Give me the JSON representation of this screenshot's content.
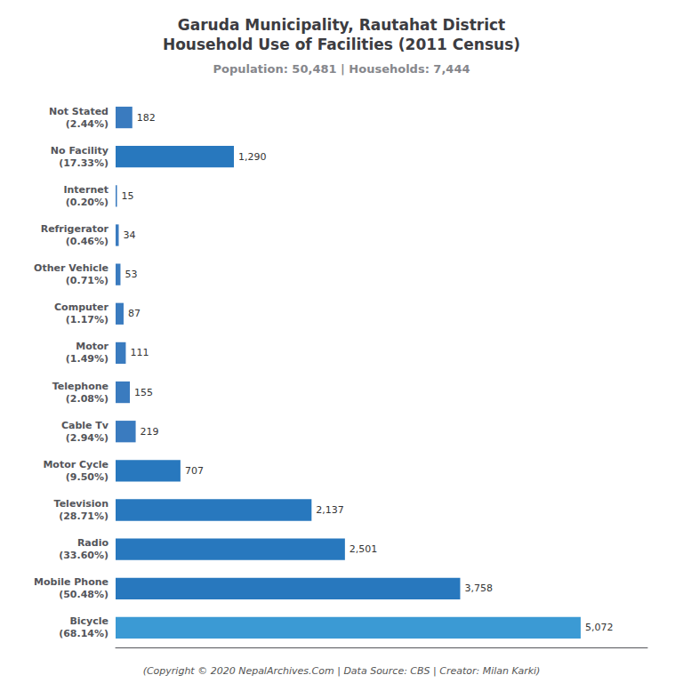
{
  "chart_data": {
    "type": "bar",
    "orientation": "horizontal",
    "title": "Garuda Municipality, Rautahat District\nHousehold Use of Facilities (2011 Census)",
    "subtitle": "Population: 50,481 | Households: 7,444",
    "annotations": [
      "(Copyright © 2020 NepalArchives.Com | Data Source: CBS | Creator: Milan Karki)"
    ],
    "categories": [
      "Not Stated\n(2.44%)",
      "No Facility\n(17.33%)",
      "Internet\n(0.20%)",
      "Refrigerator\n(0.46%)",
      "Other Vehicle\n(0.71%)",
      "Computer\n(1.17%)",
      "Motor\n(1.49%)",
      "Telephone\n(2.08%)",
      "Cable Tv\n(2.94%)",
      "Motor Cycle\n(9.50%)",
      "Television\n(28.71%)",
      "Radio\n(33.60%)",
      "Mobile Phone\n(50.48%)",
      "Bicycle\n(68.14%)"
    ],
    "values": [
      182,
      1290,
      15,
      34,
      53,
      87,
      111,
      155,
      219,
      707,
      2137,
      2501,
      3758,
      5072
    ],
    "value_labels": [
      "182",
      "1,290",
      "15",
      "34",
      "53",
      "87",
      "111",
      "155",
      "219",
      "707",
      "2,137",
      "2,501",
      "3,758",
      "5,072"
    ],
    "colors": [
      "#3a7bbf",
      "#2878be",
      "#3a7bbf",
      "#3a7bbf",
      "#3a7bbf",
      "#3a7bbf",
      "#3a7bbf",
      "#3a7bbf",
      "#3a7bbf",
      "#2878be",
      "#2878be",
      "#2878be",
      "#2878be",
      "#3b9ad4"
    ],
    "xlim": [
      0,
      5800
    ],
    "grid": false,
    "data_labels": true,
    "tick_labels": "y"
  }
}
